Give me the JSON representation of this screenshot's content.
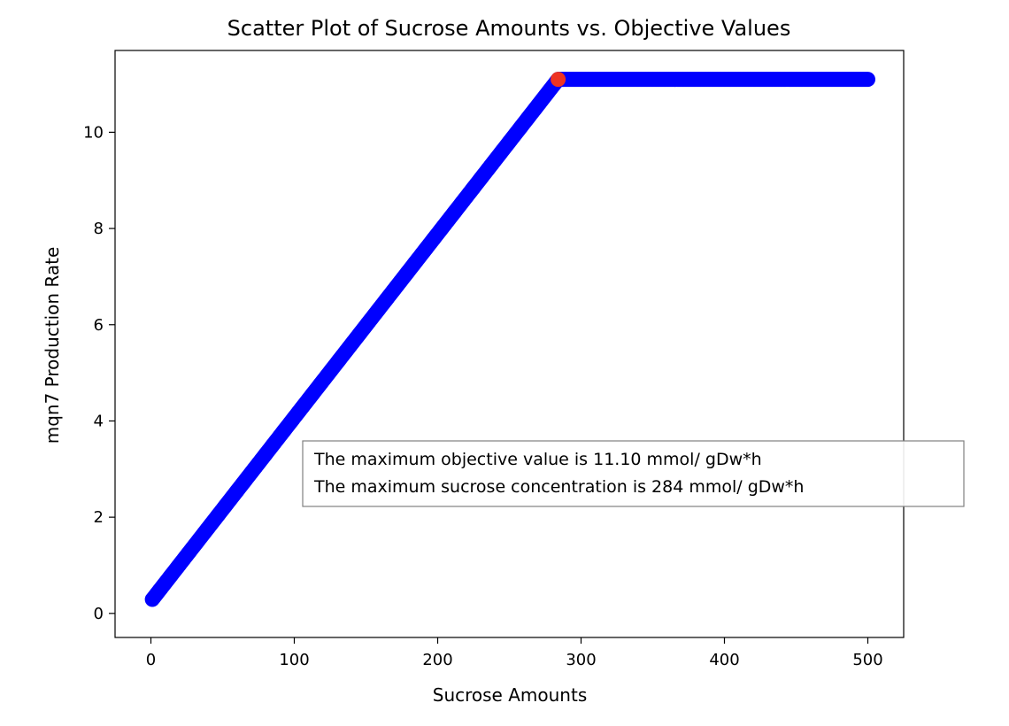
{
  "chart_data": {
    "type": "scatter",
    "title": "Scatter Plot of Sucrose Amounts vs. Objective Values",
    "xlabel": "Sucrose Amounts",
    "ylabel": "mqn7 Production Rate",
    "xlim": [
      -25,
      525
    ],
    "ylim": [
      -0.5,
      11.7
    ],
    "xticks": [
      0,
      100,
      200,
      300,
      400,
      500
    ],
    "yticks": [
      0,
      2,
      4,
      6,
      8,
      10
    ],
    "grid": false,
    "series": [
      {
        "color": "#0000ff",
        "x_start": 1,
        "x_end": 500,
        "x_step": 1,
        "slope": 0.038197,
        "intercept": 0.2522,
        "max_value": 11.1
      }
    ],
    "highlight_point": {
      "x": 284,
      "y": 11.1,
      "color": "#ee3322"
    },
    "annotation": [
      "The maximum objective value is 11.10 mmol/ gDw*h",
      "The maximum sucrose concentration is 284 mmol/ gDw*h"
    ]
  }
}
